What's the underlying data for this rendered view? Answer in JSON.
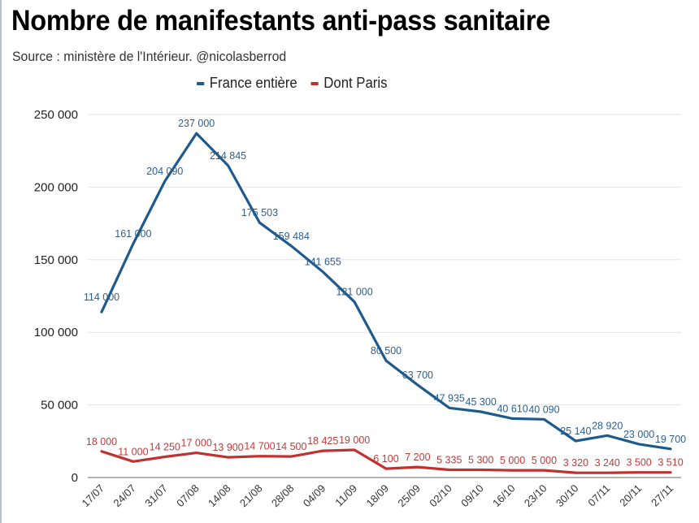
{
  "title": "Nombre de manifestants anti-pass sanitaire",
  "subtitle": "Source : ministère de l'Intérieur. @nicolasberrod",
  "legend": [
    {
      "label": "France entière",
      "color": "#1f5a8c"
    },
    {
      "label": "Dont Paris",
      "color": "#c0312f"
    }
  ],
  "chart_data": {
    "type": "line",
    "title": "Nombre de manifestants anti-pass sanitaire",
    "subtitle": "Source : ministère de l'Intérieur. @nicolasberrod",
    "xlabel": "",
    "ylabel": "",
    "x": [
      "17/07",
      "24/07",
      "31/07",
      "07/08",
      "14/08",
      "21/08",
      "28/08",
      "04/09",
      "11/09",
      "18/09",
      "25/09",
      "02/10",
      "09/10",
      "16/10",
      "23/10",
      "30/10",
      "07/11",
      "20/11",
      "27/11"
    ],
    "series": [
      {
        "name": "France entière",
        "color": "#1f5a8c",
        "values": [
          114000,
          161000,
          204090,
          237000,
          214845,
          175503,
          159484,
          141655,
          121000,
          80500,
          63700,
          47935,
          45300,
          40610,
          40090,
          25140,
          28920,
          23000,
          19700
        ],
        "labels": [
          "114 000",
          "161 000",
          "204 090",
          "237 000",
          "214 845",
          "175 503",
          "159 484",
          "141 655",
          "121 000",
          "80 500",
          "63 700",
          "47 935",
          "45 300",
          "40 610",
          "40 090",
          "25 140",
          "28 920",
          "23 000",
          "19 700"
        ]
      },
      {
        "name": "Dont Paris",
        "color": "#c0312f",
        "values": [
          18000,
          11000,
          14250,
          17000,
          13900,
          14700,
          14500,
          18425,
          19000,
          6100,
          7200,
          5335,
          5300,
          5000,
          5000,
          3320,
          3240,
          3500,
          3510
        ],
        "labels": [
          "18 000",
          "11 000",
          "14 250",
          "17 000",
          "13 900",
          "14 700",
          "14 500",
          "18 425",
          "19 000",
          "6 100",
          "7 200",
          "5 335",
          "5 300",
          "5 000",
          "5 000",
          "3 320",
          "3 240",
          "3 500",
          "3 510"
        ]
      }
    ],
    "y_ticks": [
      0,
      50000,
      100000,
      150000,
      200000,
      250000
    ],
    "y_tick_labels": [
      "0",
      "50 000",
      "100 000",
      "150 000",
      "200 000",
      "250 000"
    ],
    "ylim": [
      0,
      250000
    ],
    "grid": true,
    "legend_position": "top-center"
  }
}
